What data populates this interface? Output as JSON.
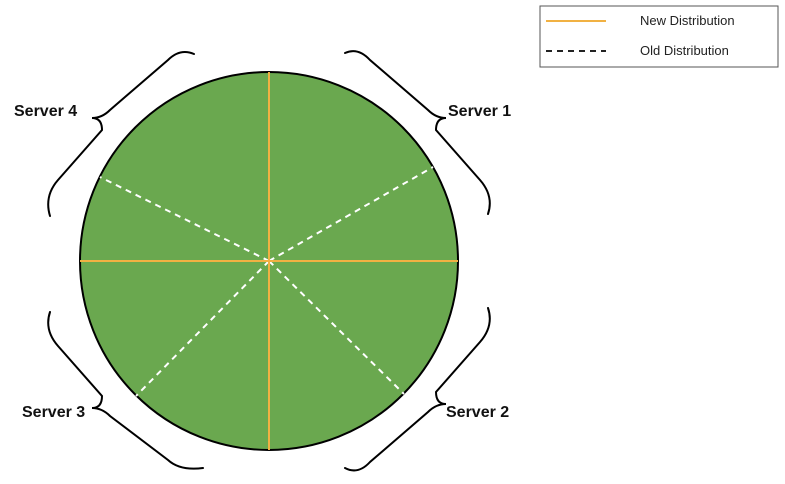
{
  "legend": {
    "new_label": "New Distribution",
    "old_label": "Old Distribution"
  },
  "servers": [
    {
      "label": "Server 1"
    },
    {
      "label": "Server 2"
    },
    {
      "label": "Server 3"
    },
    {
      "label": "Server 4"
    }
  ],
  "colors": {
    "fill": "#6aa84f",
    "new_line": "#f1b143",
    "old_line": "#ffffff",
    "outline": "#000000"
  }
}
